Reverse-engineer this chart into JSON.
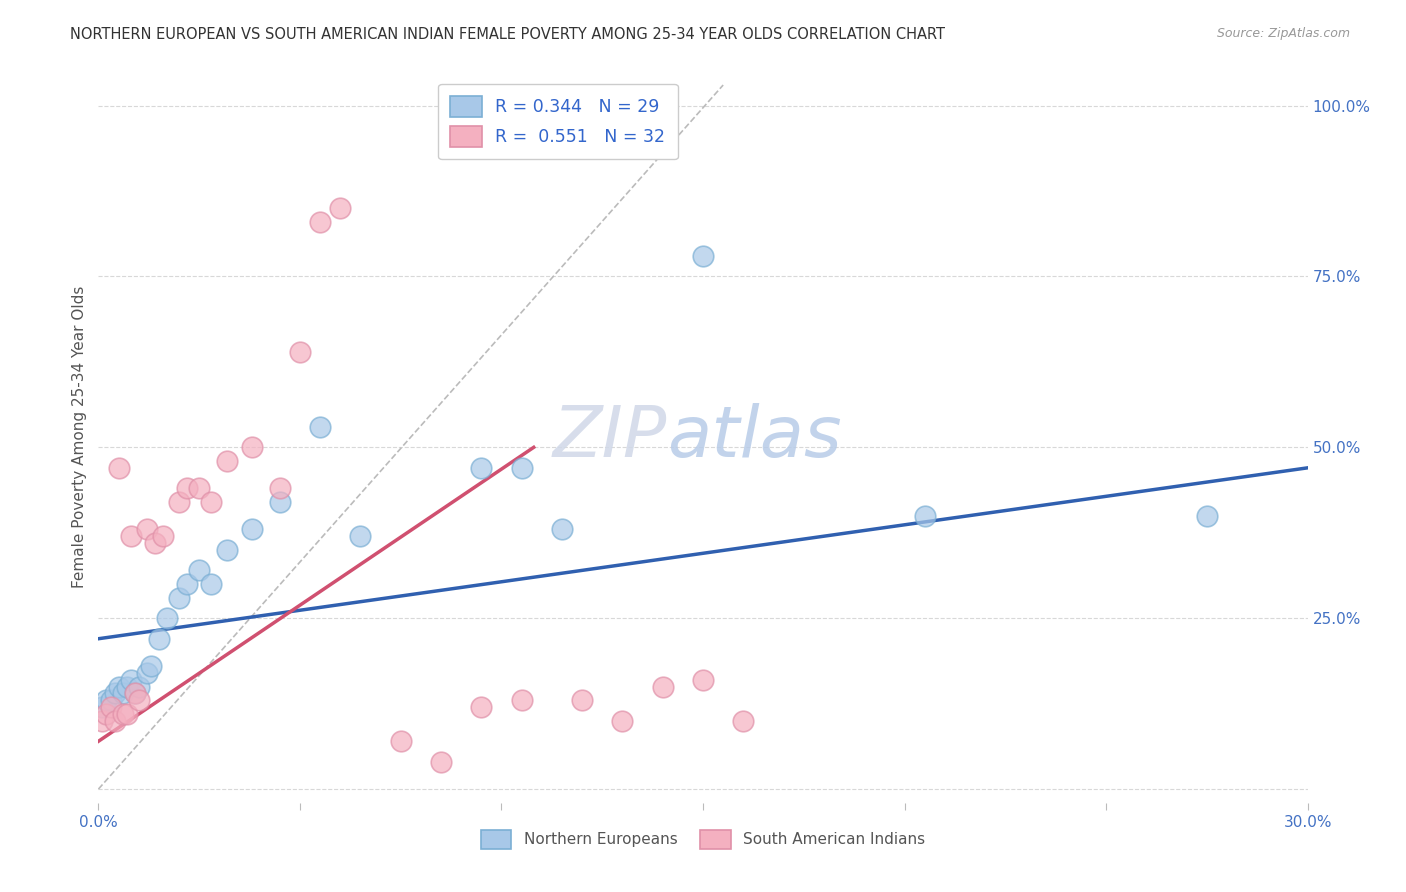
{
  "title": "NORTHERN EUROPEAN VS SOUTH AMERICAN INDIAN FEMALE POVERTY AMONG 25-34 YEAR OLDS CORRELATION CHART",
  "source": "Source: ZipAtlas.com",
  "ylabel": "Female Poverty Among 25-34 Year Olds",
  "xlim": [
    0.0,
    0.3
  ],
  "ylim": [
    -0.02,
    1.05
  ],
  "ytick_right_labels": [
    "100.0%",
    "75.0%",
    "50.0%",
    "25.0%",
    ""
  ],
  "ytick_right_values": [
    1.0,
    0.75,
    0.5,
    0.25,
    0.0
  ],
  "legend_entry_blue": "R = 0.344   N = 29",
  "legend_entry_pink": "R =  0.551   N = 32",
  "legend_title_blue": "Northern Europeans",
  "legend_title_pink": "South American Indians",
  "blue_scatter_x": [
    0.001,
    0.002,
    0.003,
    0.004,
    0.005,
    0.006,
    0.007,
    0.008,
    0.009,
    0.01,
    0.012,
    0.013,
    0.015,
    0.017,
    0.02,
    0.022,
    0.025,
    0.028,
    0.032,
    0.038,
    0.045,
    0.055,
    0.065,
    0.095,
    0.105,
    0.115,
    0.15,
    0.205,
    0.275
  ],
  "blue_scatter_y": [
    0.12,
    0.13,
    0.13,
    0.14,
    0.15,
    0.14,
    0.15,
    0.16,
    0.14,
    0.15,
    0.17,
    0.18,
    0.22,
    0.25,
    0.28,
    0.3,
    0.32,
    0.3,
    0.35,
    0.38,
    0.42,
    0.53,
    0.37,
    0.47,
    0.47,
    0.38,
    0.78,
    0.4,
    0.4
  ],
  "pink_scatter_x": [
    0.001,
    0.002,
    0.003,
    0.004,
    0.005,
    0.006,
    0.007,
    0.008,
    0.009,
    0.01,
    0.012,
    0.014,
    0.016,
    0.02,
    0.022,
    0.025,
    0.028,
    0.032,
    0.038,
    0.045,
    0.05,
    0.055,
    0.06,
    0.075,
    0.085,
    0.095,
    0.105,
    0.12,
    0.13,
    0.14,
    0.15,
    0.16
  ],
  "pink_scatter_y": [
    0.1,
    0.11,
    0.12,
    0.1,
    0.47,
    0.11,
    0.11,
    0.37,
    0.14,
    0.13,
    0.38,
    0.36,
    0.37,
    0.42,
    0.44,
    0.44,
    0.42,
    0.48,
    0.5,
    0.44,
    0.64,
    0.83,
    0.85,
    0.07,
    0.04,
    0.12,
    0.13,
    0.13,
    0.1,
    0.15,
    0.16,
    0.1
  ],
  "blue_line_x": [
    0.0,
    0.3
  ],
  "blue_line_y": [
    0.22,
    0.47
  ],
  "pink_line_x": [
    0.0,
    0.108
  ],
  "pink_line_y": [
    0.07,
    0.5
  ],
  "diag_line_x": [
    0.0,
    0.155
  ],
  "diag_line_y": [
    0.0,
    1.03
  ],
  "blue_color": "#a8c8e8",
  "pink_color": "#f4b0c0",
  "blue_scatter_edge": "#7bafd4",
  "pink_scatter_edge": "#e090a8",
  "blue_line_color": "#3060b0",
  "pink_line_color": "#d05070",
  "watermark_zip": "ZIP",
  "watermark_atlas": "atlas",
  "background_color": "#ffffff",
  "grid_color": "#d8d8d8"
}
